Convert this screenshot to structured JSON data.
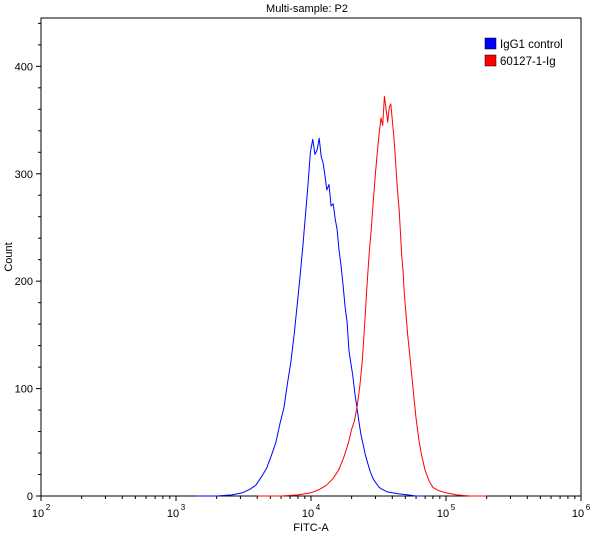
{
  "colors": {
    "frame": "#000000",
    "igg1_control": "#0000FF",
    "sample": "#FF0000"
  },
  "chart_data": {
    "type": "line",
    "title": "Multi-sample: P2",
    "xlabel": "FITC-A",
    "ylabel": "Count",
    "xscale": "log",
    "xlim": [
      100,
      1000000
    ],
    "ylim": [
      0,
      445
    ],
    "x_ticks": [
      {
        "value": 100,
        "base": "10",
        "exp": "2"
      },
      {
        "value": 1000,
        "base": "10",
        "exp": "3"
      },
      {
        "value": 10000,
        "base": "10",
        "exp": "4"
      },
      {
        "value": 100000,
        "base": "10",
        "exp": "5"
      },
      {
        "value": 1000000,
        "base": "10",
        "exp": "6"
      }
    ],
    "y_ticks": [
      {
        "value": 0,
        "label": "0"
      },
      {
        "value": 100,
        "label": "100"
      },
      {
        "value": 200,
        "label": "200"
      },
      {
        "value": 300,
        "label": "300"
      },
      {
        "value": 400,
        "label": "400"
      }
    ],
    "grid": false,
    "legend_position": "top-right",
    "series": [
      {
        "name": "IgG1 control",
        "color": "#0000FF",
        "x": [
          1400,
          2000,
          2600,
          3100,
          3500,
          3900,
          4300,
          4700,
          5100,
          5500,
          5900,
          6300,
          6700,
          7100,
          7500,
          7900,
          8300,
          8700,
          9100,
          9500,
          9900,
          10300,
          10700,
          11100,
          11500,
          11900,
          12300,
          12700,
          13100,
          13600,
          14100,
          14600,
          15100,
          15600,
          16100,
          16700,
          17300,
          17900,
          18500,
          19100,
          19700,
          20400,
          21100,
          21800,
          22600,
          23400,
          24300,
          25300,
          26400,
          27600,
          28900,
          30300,
          32000,
          34000,
          36500,
          40000,
          45000,
          52000,
          60000,
          70000
        ],
        "y": [
          0,
          0,
          1,
          3,
          6,
          10,
          18,
          26,
          38,
          50,
          68,
          82,
          105,
          125,
          150,
          178,
          205,
          232,
          262,
          290,
          320,
          332,
          318,
          322,
          333,
          316,
          310,
          298,
          285,
          290,
          270,
          272,
          258,
          248,
          230,
          214,
          196,
          176,
          162,
          136,
          124,
          112,
          96,
          84,
          70,
          58,
          48,
          38,
          30,
          22,
          16,
          12,
          8,
          6,
          4,
          3,
          2,
          1,
          0,
          0
        ]
      },
      {
        "name": "60127-1-Ig",
        "color": "#FF0000",
        "x": [
          4000,
          6000,
          8000,
          10000,
          11500,
          13000,
          14500,
          16000,
          17500,
          19000,
          20000,
          21000,
          22000,
          23000,
          24000,
          25000,
          26000,
          27000,
          28000,
          29000,
          30000,
          31000,
          32000,
          33000,
          34000,
          35000,
          36000,
          37000,
          38000,
          39000,
          40000,
          41000,
          42000,
          43000,
          44000,
          45000,
          46000,
          47000,
          48000,
          49000,
          50000,
          52000,
          54000,
          56000,
          58000,
          60000,
          63000,
          66000,
          70000,
          75000,
          80000,
          88000,
          100000,
          120000,
          150000,
          200000
        ],
        "y": [
          0,
          0,
          1,
          3,
          6,
          10,
          16,
          24,
          36,
          50,
          62,
          70,
          84,
          102,
          126,
          160,
          196,
          226,
          250,
          276,
          300,
          320,
          338,
          352,
          345,
          372,
          360,
          348,
          362,
          365,
          350,
          336,
          318,
          298,
          280,
          266,
          244,
          224,
          210,
          190,
          176,
          150,
          130,
          110,
          90,
          72,
          52,
          38,
          24,
          14,
          8,
          5,
          3,
          1,
          0,
          0
        ]
      }
    ]
  }
}
